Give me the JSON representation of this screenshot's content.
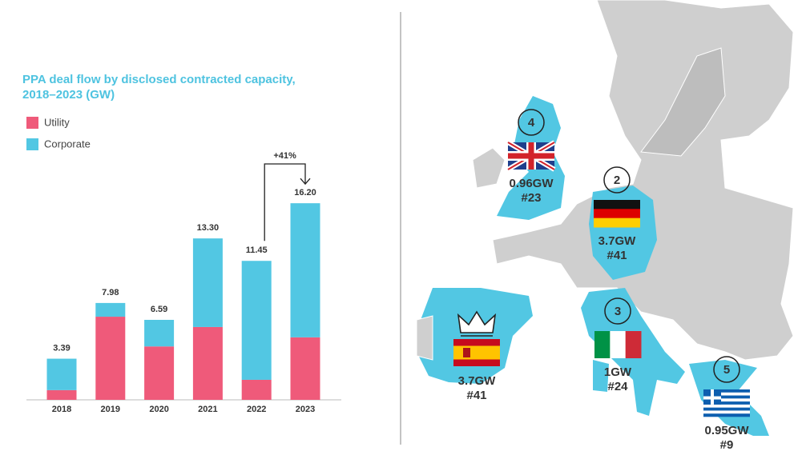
{
  "chart_data": {
    "type": "bar",
    "stacked": true,
    "title": "PPA deal flow by disclosed contracted capacity, 2018–2023 (GW)",
    "categories": [
      "2018",
      "2019",
      "2020",
      "2021",
      "2022",
      "2023"
    ],
    "series": [
      {
        "name": "Utility",
        "color": "#ef5a7a",
        "values": [
          0.8,
          6.85,
          4.4,
          6.0,
          1.65,
          5.15
        ]
      },
      {
        "name": "Corporate",
        "color": "#52c7e3",
        "values": [
          2.59,
          1.13,
          2.19,
          7.3,
          9.8,
          11.05
        ]
      }
    ],
    "totals": [
      3.39,
      7.98,
      6.59,
      13.3,
      11.45,
      16.2
    ],
    "total_labels": [
      "3.39",
      "7.98",
      "6.59",
      "13.30",
      "11.45",
      "16.20"
    ],
    "ylim": [
      0,
      17
    ],
    "annotation": "+41%"
  },
  "map": {
    "countries": [
      {
        "rank": 4,
        "capacity": "0.96GW",
        "deals": "#23"
      },
      {
        "rank": 2,
        "capacity": "3.7GW",
        "deals": "#41"
      },
      {
        "rank": 3,
        "capacity": "1GW",
        "deals": "#24"
      },
      {
        "capacity": "3.7GW",
        "deals": "#41"
      },
      {
        "rank": 5,
        "capacity": "0.95GW",
        "deals": "#9"
      }
    ]
  }
}
